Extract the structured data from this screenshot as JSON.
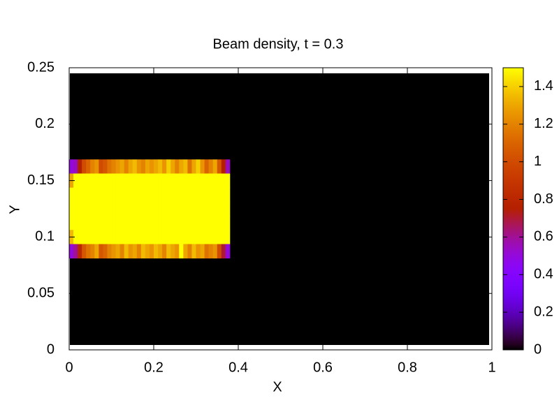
{
  "chart_data": {
    "type": "heatmap",
    "title": "Beam density, t = 0.3",
    "x_label": "X",
    "y_label": "Y",
    "xlim": [
      0,
      1
    ],
    "ylim": [
      0,
      0.25
    ],
    "xticks": [
      0,
      0.2,
      0.4,
      0.6,
      0.8,
      1
    ],
    "yticks": [
      0,
      0.05,
      0.1,
      0.15,
      0.2,
      0.25
    ],
    "cblim": [
      0,
      1.5
    ],
    "cbticks": [
      0,
      0.2,
      0.4,
      0.6,
      0.8,
      1,
      1.2,
      1.4
    ],
    "colormap": "gnuplot",
    "x": [
      0.005,
      0.015,
      0.025,
      0.035,
      0.045,
      0.055,
      0.065,
      0.075,
      0.085,
      0.095,
      0.105,
      0.115,
      0.125,
      0.135,
      0.145,
      0.155,
      0.165,
      0.175,
      0.185,
      0.195,
      0.205,
      0.215,
      0.225,
      0.235,
      0.245,
      0.255,
      0.265,
      0.275,
      0.285,
      0.295,
      0.305,
      0.315,
      0.325,
      0.335,
      0.345,
      0.355,
      0.365,
      0.375
    ],
    "y": [
      0.1625,
      0.15,
      0.1375,
      0.125,
      0.1125,
      0.1,
      0.0875
    ],
    "z": [
      [
        0.5,
        0.55,
        0.75,
        1.0,
        1.1,
        1.2,
        1.25,
        1.0,
        1.05,
        1.15,
        1.2,
        1.25,
        1.3,
        1.2,
        1.3,
        1.35,
        1.25,
        1.2,
        1.3,
        1.25,
        1.3,
        1.35,
        1.25,
        1.4,
        1.3,
        1.2,
        1.3,
        1.35,
        1.15,
        1.3,
        1.4,
        1.25,
        1.1,
        1.2,
        1.3,
        1.05,
        0.75,
        0.55
      ],
      [
        1.3,
        1.5,
        1.5,
        1.5,
        1.5,
        1.5,
        1.5,
        1.5,
        1.5,
        1.5,
        1.5,
        1.5,
        1.5,
        1.5,
        1.5,
        1.5,
        1.5,
        1.5,
        1.5,
        1.5,
        1.5,
        1.5,
        1.5,
        1.5,
        1.5,
        1.5,
        1.5,
        1.5,
        1.5,
        1.5,
        1.5,
        1.5,
        1.5,
        1.5,
        1.5,
        1.5,
        1.5,
        1.5
      ],
      [
        1.5,
        1.5,
        1.5,
        1.5,
        1.5,
        1.5,
        1.5,
        1.5,
        1.5,
        1.5,
        1.5,
        1.5,
        1.5,
        1.5,
        1.5,
        1.5,
        1.5,
        1.5,
        1.5,
        1.5,
        1.5,
        1.5,
        1.5,
        1.5,
        1.5,
        1.5,
        1.5,
        1.5,
        1.5,
        1.5,
        1.5,
        1.5,
        1.5,
        1.5,
        1.5,
        1.5,
        1.5,
        1.5
      ],
      [
        1.5,
        1.5,
        1.5,
        1.5,
        1.5,
        1.5,
        1.5,
        1.5,
        1.5,
        1.5,
        1.5,
        1.5,
        1.5,
        1.5,
        1.5,
        1.5,
        1.5,
        1.5,
        1.5,
        1.5,
        1.5,
        1.5,
        1.5,
        1.5,
        1.5,
        1.5,
        1.5,
        1.5,
        1.5,
        1.5,
        1.5,
        1.5,
        1.5,
        1.5,
        1.5,
        1.5,
        1.5,
        1.5
      ],
      [
        1.5,
        1.5,
        1.5,
        1.5,
        1.5,
        1.5,
        1.5,
        1.5,
        1.5,
        1.5,
        1.5,
        1.5,
        1.5,
        1.5,
        1.5,
        1.5,
        1.5,
        1.5,
        1.5,
        1.5,
        1.5,
        1.5,
        1.5,
        1.5,
        1.5,
        1.5,
        1.5,
        1.5,
        1.5,
        1.5,
        1.5,
        1.5,
        1.5,
        1.5,
        1.5,
        1.5,
        1.5,
        1.5
      ],
      [
        1.35,
        1.5,
        1.5,
        1.5,
        1.5,
        1.5,
        1.5,
        1.5,
        1.5,
        1.5,
        1.5,
        1.5,
        1.5,
        1.5,
        1.5,
        1.5,
        1.5,
        1.5,
        1.5,
        1.5,
        1.5,
        1.5,
        1.5,
        1.5,
        1.5,
        1.5,
        1.5,
        1.5,
        1.5,
        1.5,
        1.5,
        1.5,
        1.5,
        1.5,
        1.5,
        1.5,
        1.5,
        1.5
      ],
      [
        0.5,
        0.6,
        0.8,
        1.05,
        1.15,
        1.2,
        1.3,
        1.05,
        1.1,
        1.2,
        1.25,
        1.3,
        1.2,
        1.35,
        1.25,
        1.3,
        1.2,
        1.35,
        1.3,
        1.25,
        1.35,
        1.3,
        1.2,
        1.35,
        1.3,
        1.25,
        1.5,
        1.3,
        1.2,
        1.35,
        1.25,
        1.3,
        1.15,
        1.2,
        1.25,
        1.0,
        0.7,
        0.5
      ]
    ]
  }
}
